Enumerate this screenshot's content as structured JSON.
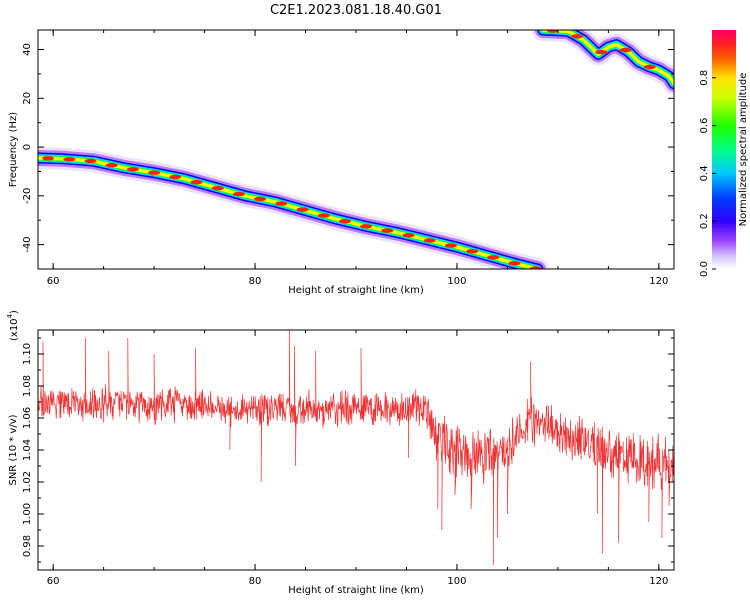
{
  "title": "C2E1.2023.081.18.40.G01",
  "colors": {
    "snr_line": "#ee3333",
    "ridge_palette": [
      "#ffffff",
      "#c8a8ff",
      "#7a00ff",
      "#0000ff",
      "#00d0ff",
      "#00ff40",
      "#ffff00",
      "#ff2200",
      "#ff0066"
    ]
  },
  "chart_data": [
    {
      "type": "heatmap",
      "name": "spectrogram",
      "xlabel": "Height of straight line (km)",
      "ylabel": "Frequency (Hz)",
      "xlim": [
        58.5,
        121.5
      ],
      "ylim": [
        -50,
        48
      ],
      "x_ticks": [
        60,
        80,
        100,
        120
      ],
      "y_ticks": [
        -40,
        -20,
        0,
        20,
        40
      ],
      "colorbar": {
        "label": "Normalized spectral amplitude",
        "range": [
          0,
          1
        ],
        "ticks": [
          "0.0",
          "0.2",
          "0.4",
          "0.6",
          "0.8"
        ]
      },
      "ridges": [
        {
          "points": [
            [
              58.5,
              -4.5
            ],
            [
              61,
              -4.8
            ],
            [
              64,
              -5.8
            ],
            [
              67,
              -8.5
            ],
            [
              70,
              -10.5
            ],
            [
              73,
              -13
            ],
            [
              76,
              -16.5
            ],
            [
              79,
              -20
            ],
            [
              82,
              -22.5
            ],
            [
              85,
              -26
            ],
            [
              88,
              -29.5
            ],
            [
              91,
              -32.5
            ],
            [
              94,
              -35
            ],
            [
              97,
              -38
            ],
            [
              100,
              -41
            ],
            [
              103,
              -44.5
            ],
            [
              106,
              -48
            ],
            [
              108,
              -50
            ]
          ]
        },
        {
          "points": [
            [
              108.5,
              48
            ],
            [
              111,
              47.5
            ],
            [
              112.5,
              44
            ],
            [
              114,
              38
            ],
            [
              115,
              41
            ],
            [
              115.8,
              42
            ],
            [
              117,
              39
            ],
            [
              118,
              35
            ],
            [
              119,
              33
            ],
            [
              120,
              31.5
            ],
            [
              121,
              29
            ],
            [
              121.5,
              26
            ]
          ]
        }
      ]
    },
    {
      "type": "line",
      "name": "snr",
      "xlabel": "Height of straight line (km)",
      "ylabel": "SNR (10 * v/v)",
      "multiplier": "(x10",
      "multiplier_exp": "4",
      "multiplier_close": ")",
      "xlim": [
        58.5,
        121.5
      ],
      "ylim": [
        0.965,
        1.115
      ],
      "x_ticks": [
        60,
        80,
        100,
        120
      ],
      "y_ticks": [
        "0.98",
        "1.00",
        "1.02",
        "1.04",
        "1.06",
        "1.08",
        "1.10"
      ],
      "baseline": [
        [
          58.5,
          1.07
        ],
        [
          70,
          1.068
        ],
        [
          80,
          1.066
        ],
        [
          90,
          1.066
        ],
        [
          97,
          1.066
        ],
        [
          98,
          1.045
        ],
        [
          100,
          1.04
        ],
        [
          103,
          1.035
        ],
        [
          105,
          1.04
        ],
        [
          107,
          1.058
        ],
        [
          109,
          1.055
        ],
        [
          112,
          1.045
        ],
        [
          115,
          1.04
        ],
        [
          118,
          1.035
        ],
        [
          121.5,
          1.03
        ]
      ],
      "noise_amplitude": [
        [
          58.5,
          0.013
        ],
        [
          97,
          0.013
        ],
        [
          98,
          0.02
        ],
        [
          104,
          0.022
        ],
        [
          106,
          0.016
        ],
        [
          121.5,
          0.02
        ]
      ],
      "spikes": [
        [
          59.0,
          1.108
        ],
        [
          63.2,
          1.11
        ],
        [
          65.5,
          1.102
        ],
        [
          67.4,
          1.11
        ],
        [
          70.0,
          1.1
        ],
        [
          74.1,
          1.104
        ],
        [
          77.5,
          1.04
        ],
        [
          80.6,
          1.02
        ],
        [
          83.4,
          1.116
        ],
        [
          83.9,
          1.105
        ],
        [
          84.0,
          1.03
        ],
        [
          86.0,
          1.102
        ],
        [
          90.5,
          1.104
        ],
        [
          95.2,
          1.035
        ],
        [
          98.1,
          1.003
        ],
        [
          98.5,
          0.99
        ],
        [
          99.8,
          1.012
        ],
        [
          101.4,
          1.003
        ],
        [
          103.6,
          0.968
        ],
        [
          104.0,
          0.985
        ],
        [
          105.0,
          1.0
        ],
        [
          107.3,
          1.095
        ],
        [
          113.9,
          1.0
        ],
        [
          114.4,
          0.975
        ],
        [
          116.0,
          0.982
        ],
        [
          119.0,
          0.995
        ],
        [
          120.3,
          0.985
        ],
        [
          121.0,
          1.005
        ]
      ]
    }
  ]
}
